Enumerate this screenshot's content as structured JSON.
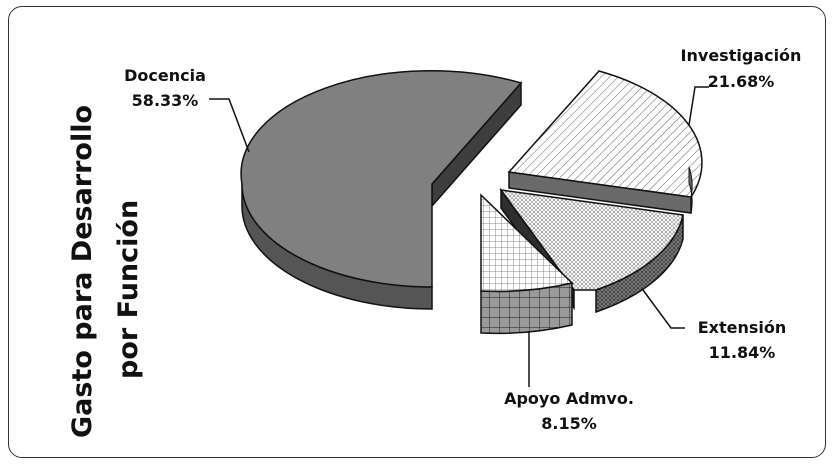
{
  "chart_data": {
    "type": "pie",
    "title_line1": "Gasto para Desarrollo",
    "title_line2": "por Función",
    "slices": [
      {
        "label": "Docencia",
        "value": 58.33,
        "value_text": "58.33%",
        "fill": "#808080",
        "side": "#555555"
      },
      {
        "label": "Investigación",
        "value": 21.68,
        "value_text": "21.68%",
        "fill": "hatch",
        "side": "#6a6a6a"
      },
      {
        "label": "Extensión",
        "value": 11.84,
        "value_text": "11.84%",
        "fill": "dots",
        "side": "#3a3a3a"
      },
      {
        "label": "Apoyo Admvo.",
        "value": 8.15,
        "value_text": "8.15%",
        "fill": "grid",
        "side": "#777777"
      }
    ]
  }
}
